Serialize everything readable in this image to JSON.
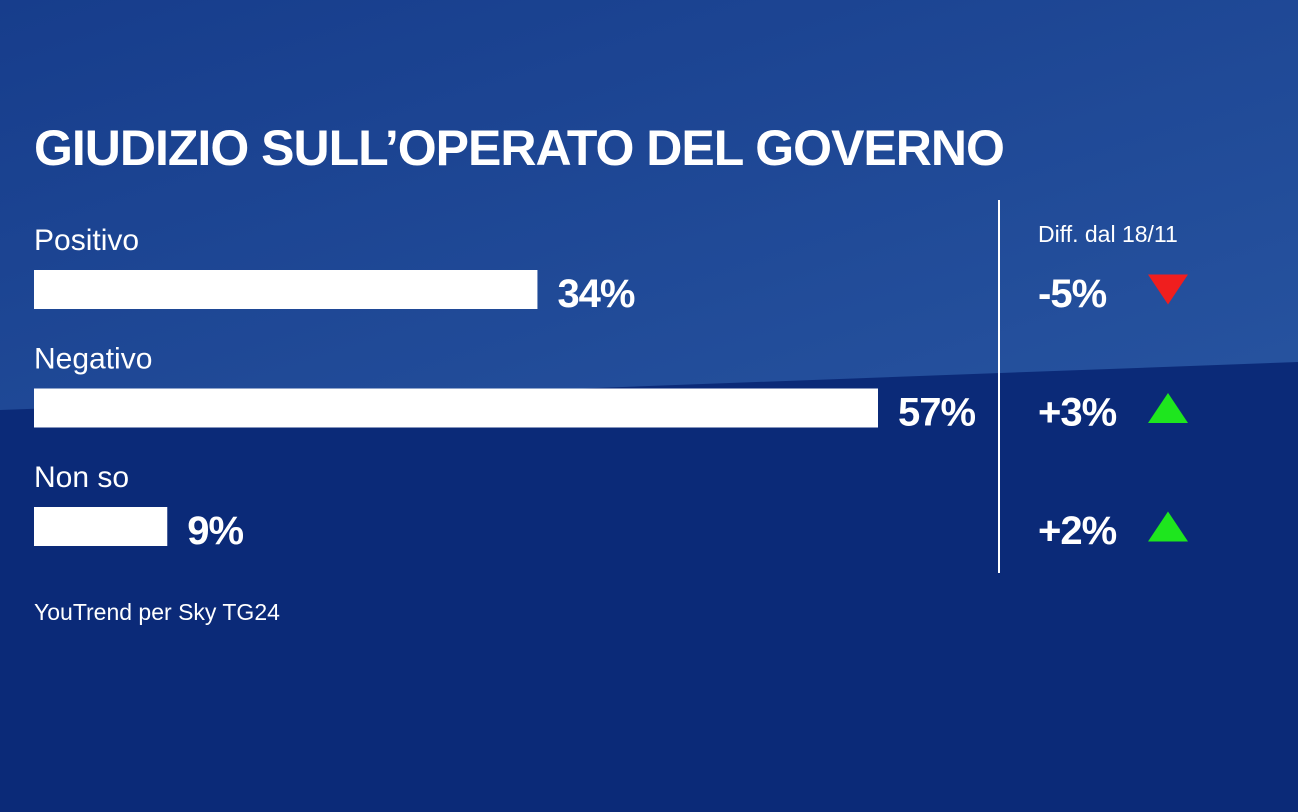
{
  "chart_data": {
    "type": "bar",
    "orientation": "horizontal",
    "title": "GIUDIZIO SULL’OPERATO DEL GOVERNO",
    "categories": [
      "Positivo",
      "Negativo",
      "Non so"
    ],
    "values": [
      34,
      57,
      9
    ],
    "value_labels": [
      "34%",
      "57%",
      "9%"
    ],
    "color": "#ffffff",
    "xlim": [
      0,
      57
    ],
    "diff": {
      "label": "Diff. dal 18/11",
      "values": [
        -5,
        3,
        2
      ],
      "value_labels": [
        "-5%",
        "+3%",
        "+2%"
      ],
      "up_color": "#1ee61e",
      "down_color": "#f01e1e"
    },
    "source": "YouTrend per Sky TG24"
  }
}
